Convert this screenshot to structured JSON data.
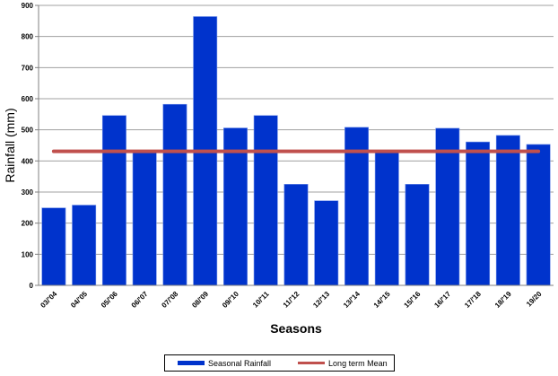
{
  "chart_data": {
    "type": "bar",
    "xlabel": "Seasons",
    "ylabel": "Rainfall  (mm)",
    "ylim": [
      0,
      900
    ],
    "yticks": [
      0,
      100,
      200,
      300,
      400,
      500,
      600,
      700,
      800,
      900
    ],
    "grid": true,
    "legend_position": "bottom",
    "categories": [
      "03/'04",
      "04/'05",
      "05/'06",
      "06/'07",
      "07/'08",
      "08/'09",
      "09/'10",
      "10/'11",
      "11/'12",
      "12/'13",
      "13/'14",
      "14/'15",
      "15/'16",
      "16/'17",
      "17/'18",
      "18/'19",
      "19/20"
    ],
    "series": [
      {
        "name": "Seasonal Rainfall",
        "type": "bar",
        "color": "#0033cc",
        "values": [
          249,
          258,
          546,
          428,
          582,
          864,
          506,
          546,
          325,
          272,
          508,
          430,
          325,
          505,
          461,
          482,
          453
        ]
      },
      {
        "name": "Long term Mean",
        "type": "line",
        "color": "#c0504d",
        "value": 431
      }
    ]
  }
}
